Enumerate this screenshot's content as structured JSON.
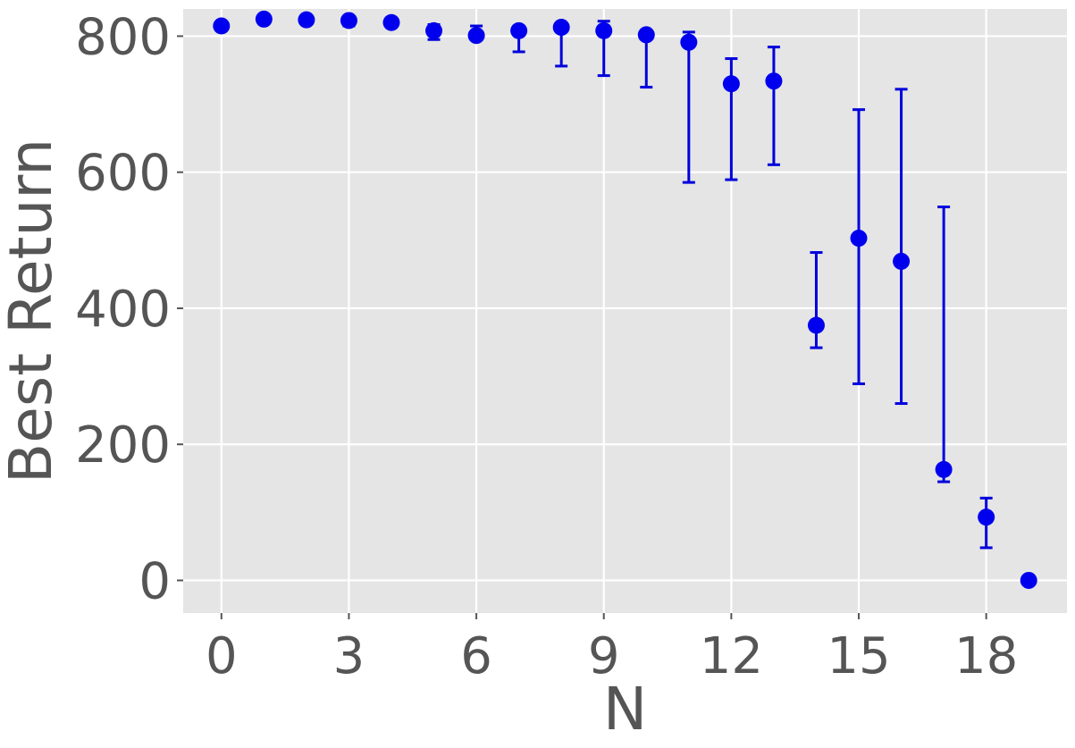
{
  "chart_data": {
    "type": "scatter",
    "title": "",
    "xlabel": "N",
    "ylabel": "Best Return",
    "xlim": [
      -0.9,
      19.9
    ],
    "ylim": [
      -48,
      840
    ],
    "xticks": [
      0,
      3,
      6,
      9,
      12,
      15,
      18
    ],
    "yticks": [
      0,
      200,
      400,
      600,
      800
    ],
    "grid": true,
    "background": "#e5e5e5",
    "grid_color": "#ffffff",
    "marker_color": "#0000ee",
    "errorbar_color": "#0000dd",
    "points": [
      {
        "x": 0,
        "y": 815,
        "lower": 810,
        "upper": 820
      },
      {
        "x": 1,
        "y": 825,
        "lower": 825,
        "upper": 825
      },
      {
        "x": 2,
        "y": 824,
        "lower": 824,
        "upper": 824
      },
      {
        "x": 3,
        "y": 823,
        "lower": 815,
        "upper": 826
      },
      {
        "x": 4,
        "y": 820,
        "lower": 820,
        "upper": 820
      },
      {
        "x": 5,
        "y": 808,
        "lower": 795,
        "upper": 817
      },
      {
        "x": 6,
        "y": 801,
        "lower": 801,
        "upper": 815
      },
      {
        "x": 7,
        "y": 808,
        "lower": 777,
        "upper": 812
      },
      {
        "x": 8,
        "y": 813,
        "lower": 756,
        "upper": 818
      },
      {
        "x": 9,
        "y": 808,
        "lower": 742,
        "upper": 822
      },
      {
        "x": 10,
        "y": 802,
        "lower": 725,
        "upper": 802
      },
      {
        "x": 11,
        "y": 791,
        "lower": 585,
        "upper": 806
      },
      {
        "x": 12,
        "y": 730,
        "lower": 589,
        "upper": 767
      },
      {
        "x": 13,
        "y": 734,
        "lower": 611,
        "upper": 784
      },
      {
        "x": 14,
        "y": 375,
        "lower": 342,
        "upper": 482
      },
      {
        "x": 15,
        "y": 503,
        "lower": 289,
        "upper": 692
      },
      {
        "x": 16,
        "y": 469,
        "lower": 260,
        "upper": 722
      },
      {
        "x": 17,
        "y": 163,
        "lower": 145,
        "upper": 549
      },
      {
        "x": 18,
        "y": 93,
        "lower": 48,
        "upper": 121
      },
      {
        "x": 19,
        "y": 0,
        "lower": 0,
        "upper": 2
      }
    ]
  }
}
